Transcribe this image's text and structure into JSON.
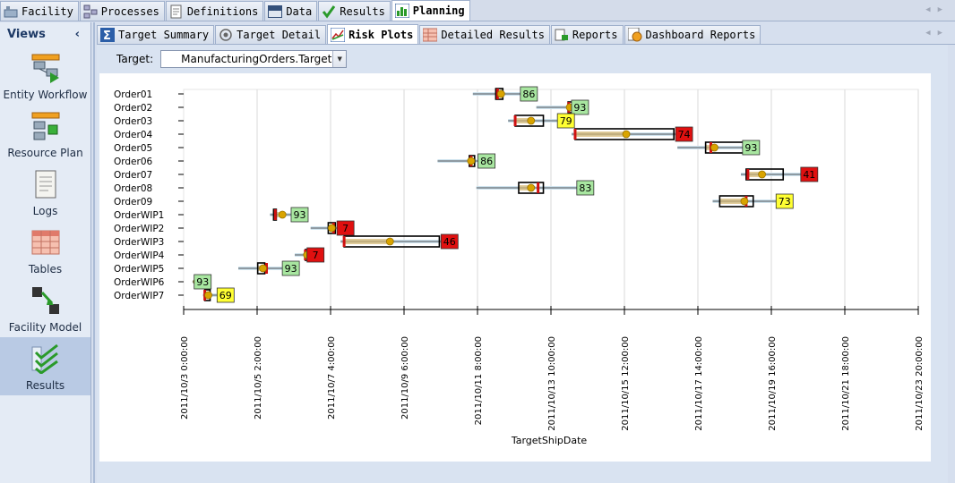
{
  "top_tabs": [
    {
      "label": "Facility",
      "icon": "facility-icon",
      "active": false
    },
    {
      "label": "Processes",
      "icon": "processes-icon",
      "active": false
    },
    {
      "label": "Definitions",
      "icon": "definitions-icon",
      "active": false
    },
    {
      "label": "Data",
      "icon": "data-table-icon",
      "active": false
    },
    {
      "label": "Results",
      "icon": "results-icon",
      "active": false
    },
    {
      "label": "Planning",
      "icon": "planning-icon",
      "active": true
    }
  ],
  "sidebar": {
    "title": "Views",
    "items": [
      {
        "label": "Entity Workflow",
        "icon": "entity-workflow-icon"
      },
      {
        "label": "Resource Plan",
        "icon": "resource-plan-icon"
      },
      {
        "label": "Logs",
        "icon": "logs-icon"
      },
      {
        "label": "Tables",
        "icon": "tables-icon"
      },
      {
        "label": "Facility Model",
        "icon": "facility-model-icon"
      },
      {
        "label": "Results",
        "icon": "results-checks-icon",
        "selected": true
      }
    ]
  },
  "sub_tabs": [
    {
      "label": "Target Summary",
      "icon": "sigma-icon",
      "active": false
    },
    {
      "label": "Target Detail",
      "icon": "target-icon",
      "active": false
    },
    {
      "label": "Risk Plots",
      "icon": "chart-icon",
      "active": true
    },
    {
      "label": "Detailed Results",
      "icon": "grid-icon",
      "active": false
    },
    {
      "label": "Reports",
      "icon": "report-icon",
      "active": false
    },
    {
      "label": "Dashboard Reports",
      "icon": "dashboard-icon",
      "active": false
    }
  ],
  "target": {
    "label": "Target:",
    "value": "ManufacturingOrders.TargetShi..."
  },
  "colors": {
    "green_badge": "#a8e6a0",
    "yellow_badge": "#ffff33",
    "red_badge": "#e01010",
    "mean_dot": "#d9a400"
  },
  "chart_data": {
    "type": "box",
    "xlabel": "TargetShipDate",
    "x_ticks": [
      "2011/10/3 0:00:00",
      "2011/10/5 2:00:00",
      "2011/10/7 4:00:00",
      "2011/10/9 6:00:00",
      "2011/10/11 8:00:00",
      "2011/10/13 10:00:00",
      "2011/10/15 12:00:00",
      "2011/10/17 14:00:00",
      "2011/10/19 16:00:00",
      "2011/10/21 18:00:00",
      "2011/10/23 20:00:00"
    ],
    "xlim_days": [
      0,
      20.83
    ],
    "rows": [
      {
        "name": "Order01",
        "wmin": 8.2,
        "q1": 8.85,
        "q3": 9.05,
        "wmax": 9.7,
        "mean": 9.0,
        "target": 8.9,
        "pct": "86",
        "status": "green"
      },
      {
        "name": "Order02",
        "wmin": 10.0,
        "q1": 10.9,
        "q3": 11.05,
        "wmax": 11.15,
        "mean": 10.95,
        "target": 10.92,
        "pct": "93",
        "status": "green"
      },
      {
        "name": "Order03",
        "wmin": 9.2,
        "q1": 9.4,
        "q3": 10.2,
        "wmax": 10.75,
        "mean": 9.85,
        "target": 9.4,
        "pct": "79",
        "status": "yellow"
      },
      {
        "name": "Order04",
        "wmin": 11.0,
        "q1": 11.1,
        "q3": 13.9,
        "wmax": 14.1,
        "mean": 12.55,
        "target": 11.1,
        "pct": "74",
        "status": "red"
      },
      {
        "name": "Order05",
        "wmin": 14.0,
        "q1": 14.8,
        "q3": 15.9,
        "wmax": 16.0,
        "mean": 15.05,
        "target": 14.95,
        "pct": "93",
        "status": "green"
      },
      {
        "name": "Order06",
        "wmin": 7.2,
        "q1": 8.1,
        "q3": 8.25,
        "wmax": 8.5,
        "mean": 8.15,
        "target": 8.15,
        "pct": "86",
        "status": "green"
      },
      {
        "name": "Order07",
        "wmin": 15.8,
        "q1": 15.95,
        "q3": 17.0,
        "wmax": 17.65,
        "mean": 16.4,
        "target": 16.0,
        "pct": "41",
        "status": "red"
      },
      {
        "name": "Order08",
        "wmin": 8.3,
        "q1": 9.5,
        "q3": 10.2,
        "wmax": 11.3,
        "mean": 9.85,
        "target": 10.05,
        "pct": "83",
        "status": "green"
      },
      {
        "name": "Order09",
        "wmin": 15.0,
        "q1": 15.2,
        "q3": 16.15,
        "wmax": 16.95,
        "mean": 15.9,
        "target": 15.95,
        "pct": "73",
        "status": "yellow"
      },
      {
        "name": "OrderWIP1",
        "wmin": 2.45,
        "q1": 2.55,
        "q3": 2.6,
        "wmax": 3.2,
        "mean": 2.8,
        "target": 2.6,
        "pct": "93",
        "status": "green"
      },
      {
        "name": "OrderWIP2",
        "wmin": 3.6,
        "q1": 4.1,
        "q3": 4.3,
        "wmax": 4.5,
        "mean": 4.2,
        "target": 4.25,
        "pct": "7",
        "status": "red"
      },
      {
        "name": "OrderWIP3",
        "wmin": 4.45,
        "q1": 4.55,
        "q3": 7.25,
        "wmax": 7.45,
        "mean": 5.85,
        "target": 4.55,
        "pct": "46",
        "status": "red"
      },
      {
        "name": "OrderWIP4",
        "wmin": 3.15,
        "q1": 3.45,
        "q3": 3.55,
        "wmax": 3.65,
        "mean": 3.5,
        "target": 3.45,
        "pct": "7",
        "status": "red"
      },
      {
        "name": "OrderWIP5",
        "wmin": 1.55,
        "q1": 2.1,
        "q3": 2.3,
        "wmax": 2.95,
        "mean": 2.25,
        "target": 2.35,
        "pct": "93",
        "status": "green"
      },
      {
        "name": "OrderWIP6",
        "wmin": 0.25,
        "q1": 0.35,
        "q3": 0.4,
        "wmax": 0.45,
        "mean": 0.38,
        "target": 0.4,
        "pct": "93",
        "status": "green"
      },
      {
        "name": "OrderWIP7",
        "wmin": 0.55,
        "q1": 0.6,
        "q3": 0.75,
        "wmax": 1.1,
        "mean": 0.7,
        "target": 0.6,
        "pct": "69",
        "status": "yellow"
      }
    ]
  }
}
